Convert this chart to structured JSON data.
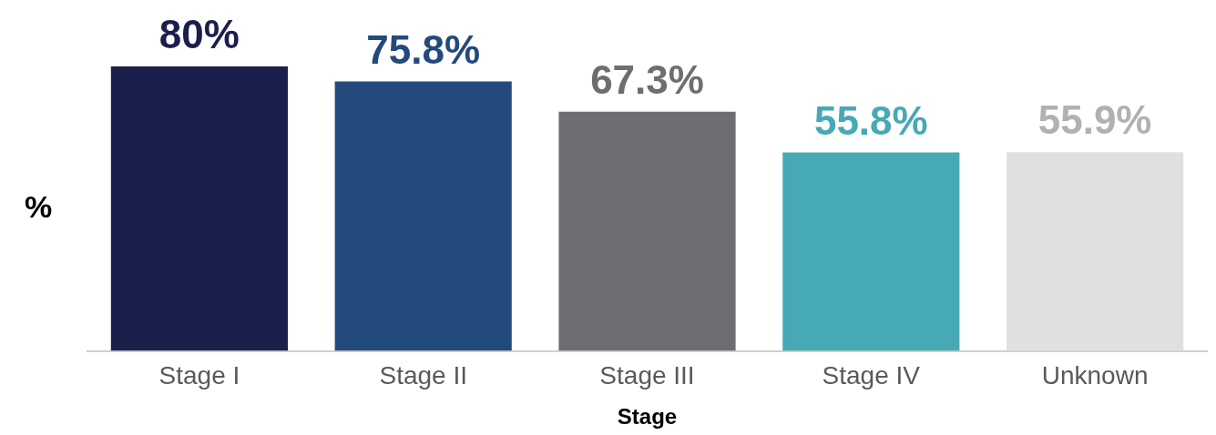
{
  "chart_data": {
    "type": "bar",
    "xlabel": "Stage",
    "ylabel": "%",
    "categories": [
      "Stage I",
      "Stage II",
      "Stage III",
      "Stage IV",
      "Unknown"
    ],
    "values": [
      80,
      75.8,
      67.3,
      55.8,
      55.9
    ],
    "colors": [
      "#1a1f4b",
      "#234a7c",
      "#6e6e72",
      "#46a9b5",
      "#e0e0e0"
    ],
    "value_labels": [
      "80%",
      "75.8%",
      "67.3%",
      "55.8%",
      "55.9%"
    ],
    "ylim": [
      0,
      80
    ],
    "grid": false,
    "legend": false
  }
}
